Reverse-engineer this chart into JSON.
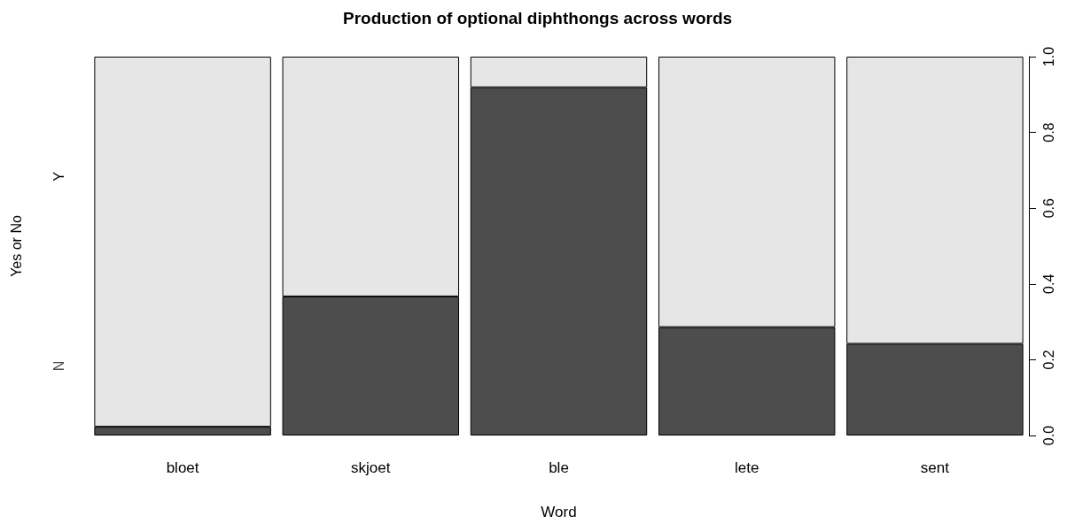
{
  "chart_data": {
    "type": "bar",
    "title": "Production of optional diphthongs across words",
    "xlabel": "Word",
    "ylabel": "Yes or No",
    "categories": [
      "bloet",
      "skjoet",
      "ble",
      "lete",
      "sent"
    ],
    "stacked": true,
    "series": [
      {
        "name": "N",
        "color": "#4d4d4d",
        "values": [
          0.023,
          0.367,
          0.919,
          0.286,
          0.242
        ]
      },
      {
        "name": "Y",
        "color": "#e6e6e6",
        "values": [
          0.977,
          0.633,
          0.081,
          0.714,
          0.758
        ]
      }
    ],
    "ylim": [
      0,
      1
    ],
    "yticks": [
      {
        "value": 0,
        "label": "0.0"
      },
      {
        "value": 0.2,
        "label": "0.2"
      },
      {
        "value": 0.4,
        "label": "0.4"
      },
      {
        "value": 0.6,
        "label": "0.6"
      },
      {
        "value": 0.8,
        "label": "0.8"
      },
      {
        "value": 1,
        "label": "1.0"
      }
    ],
    "grid": false,
    "legend": false
  }
}
